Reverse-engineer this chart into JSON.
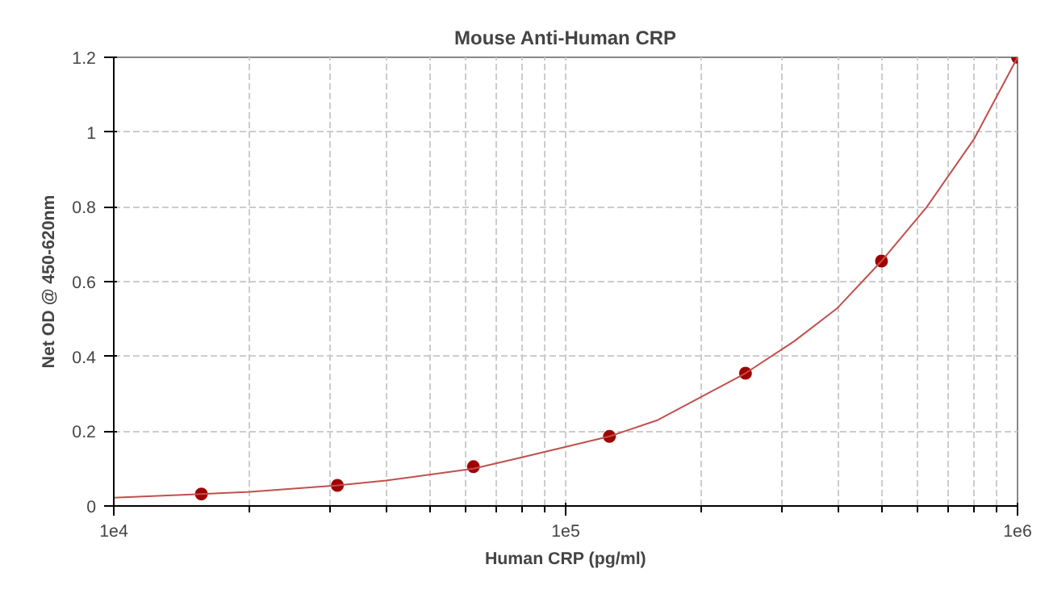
{
  "chart_data": {
    "type": "scatter",
    "title": "Mouse Anti-Human CRP",
    "xlabel": "Human CRP (pg/ml)",
    "ylabel": "Net OD @ 450-620nm",
    "log": "x",
    "grid": true,
    "xlim": [
      10000,
      1000000
    ],
    "xticks": [
      {
        "value": 10000,
        "label": "1e4"
      },
      {
        "value": 100000,
        "label": "1e5"
      },
      {
        "value": 1000000,
        "label": "1e6"
      }
    ],
    "ylim": [
      0,
      1.2
    ],
    "yticks": [
      0,
      0.2,
      0.4,
      0.6,
      0.8,
      1,
      1.2
    ],
    "series": [
      {
        "marker": "circle",
        "color": "#a00000",
        "x": [
          15625,
          31250,
          62500,
          125000,
          250000,
          500000,
          1000000
        ],
        "values": [
          0.032,
          0.055,
          0.105,
          0.186,
          0.355,
          0.655,
          1.2
        ]
      },
      {
        "type": "line",
        "color": "#c0504d",
        "line_style": "solid",
        "x": [
          10000,
          15625,
          20000,
          31250,
          40000,
          62500,
          80000,
          125000,
          160000,
          250000,
          320000,
          400000,
          500000,
          630000,
          800000,
          1000000
        ],
        "values": [
          0.022,
          0.032,
          0.038,
          0.055,
          0.068,
          0.1,
          0.13,
          0.186,
          0.23,
          0.355,
          0.44,
          0.53,
          0.655,
          0.8,
          0.98,
          1.2
        ]
      }
    ]
  }
}
